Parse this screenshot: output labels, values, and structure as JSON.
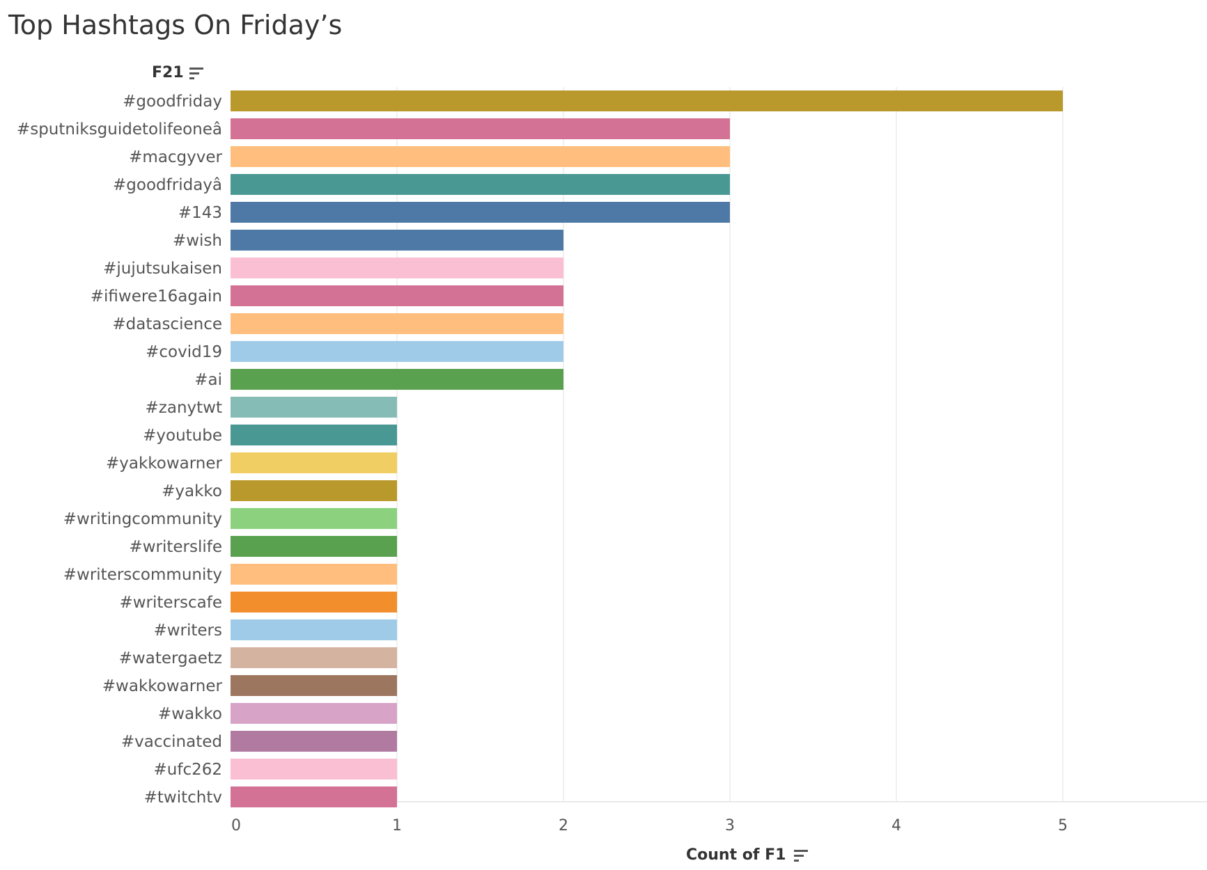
{
  "title": "Top Hashtags On Friday’s",
  "dimension_header": "F21",
  "chart_data": {
    "type": "bar",
    "orientation": "horizontal",
    "xlabel": "Count of F1",
    "ylabel": "F21",
    "xlim": [
      0,
      5.8
    ],
    "x_ticks": [
      0,
      1,
      2,
      3,
      4,
      5
    ],
    "grid": "vertical",
    "categories": [
      "#goodfriday",
      "#sputniksguidetolifeoneâ",
      "#macgyver",
      "#goodfridayâ",
      "#143",
      "#wish",
      "#jujutsukaisen",
      "#ifiwere16again",
      "#datascience",
      "#covid19",
      "#ai",
      "#zanytwt",
      "#youtube",
      "#yakkowarner",
      "#yakko",
      "#writingcommunity",
      "#writerslife",
      "#writerscommunity",
      "#writerscafe",
      "#writers",
      "#watergaetz",
      "#wakkowarner",
      "#wakko",
      "#vaccinated",
      "#ufc262",
      "#twitchtv"
    ],
    "values": [
      5,
      3,
      3,
      3,
      3,
      2,
      2,
      2,
      2,
      2,
      2,
      1,
      1,
      1,
      1,
      1,
      1,
      1,
      1,
      1,
      1,
      1,
      1,
      1,
      1,
      1
    ],
    "colors": [
      "#b9992b",
      "#d37295",
      "#ffbe7d",
      "#499894",
      "#4e79a7",
      "#4e79a7",
      "#fabfd2",
      "#d37295",
      "#ffbe7d",
      "#a0cbe8",
      "#59a14f",
      "#86bcb6",
      "#499894",
      "#f1ce63",
      "#b9992b",
      "#8cd17d",
      "#59a14f",
      "#ffbe7d",
      "#f28e2b",
      "#a0cbe8",
      "#d4b3a1",
      "#9d7660",
      "#d7a4c8",
      "#b07aa1",
      "#fabfd2",
      "#d37295"
    ]
  }
}
